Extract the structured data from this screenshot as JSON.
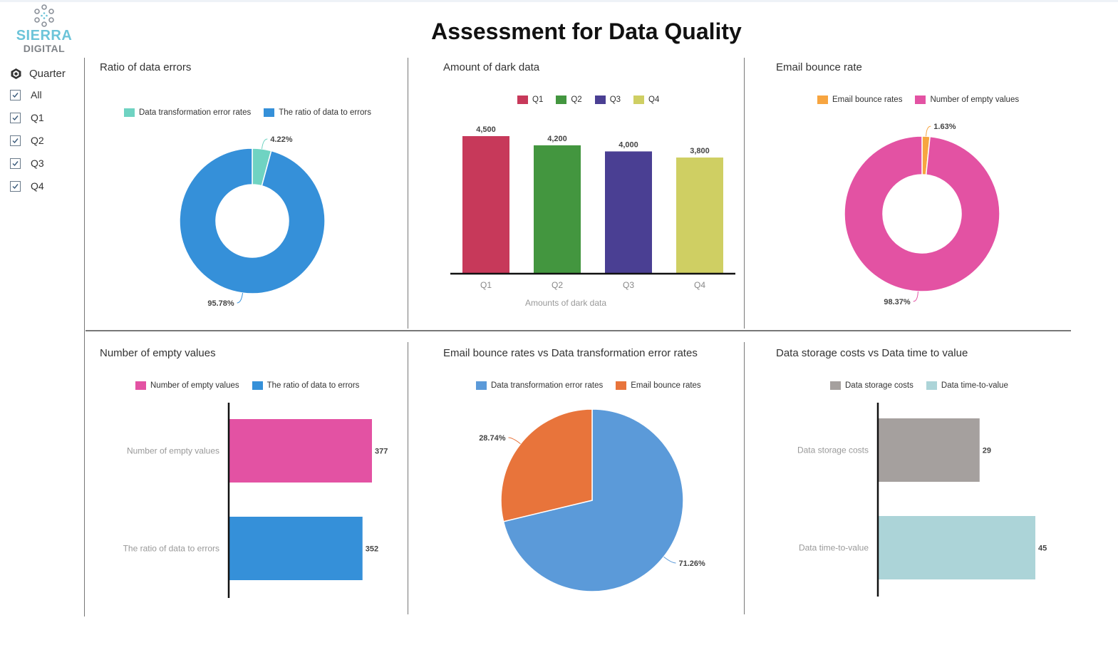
{
  "app": {
    "logo_line1": "SIERRA",
    "logo_line2": "DIGITAL",
    "title": "Assessment for Data Quality"
  },
  "filter": {
    "header": "Quarter",
    "header_icon": "cube-icon",
    "items": [
      {
        "label": "All",
        "checked": true
      },
      {
        "label": "Q1",
        "checked": true
      },
      {
        "label": "Q2",
        "checked": true
      },
      {
        "label": "Q3",
        "checked": true
      },
      {
        "label": "Q4",
        "checked": true
      }
    ]
  },
  "panels": {
    "p1": {
      "title": "Ratio of data errors"
    },
    "p2": {
      "title": "Amount of dark data"
    },
    "p3": {
      "title": "Email bounce rate"
    },
    "p4": {
      "title": "Number of empty values"
    },
    "p5": {
      "title": "Email bounce rates vs Data transformation error rates"
    },
    "p6": {
      "title": "Data storage costs vs Data time to value"
    }
  },
  "chart_data": [
    {
      "type": "pie",
      "donut": true,
      "title": "Ratio of data errors",
      "legend_position": "top",
      "categories": [
        "Data transformation error rates",
        "The ratio of data to errors"
      ],
      "values": [
        4.22,
        95.78
      ],
      "labels": [
        "4.22%",
        "95.78%"
      ],
      "colors": [
        "#6fd3c2",
        "#3590d9"
      ]
    },
    {
      "type": "bar",
      "title": "Amount of dark data",
      "legend_position": "top",
      "categories": [
        "Q1",
        "Q2",
        "Q3",
        "Q4"
      ],
      "values": [
        4500,
        4200,
        4000,
        3800
      ],
      "labels": [
        "4,500",
        "4,200",
        "4,000",
        "3,800"
      ],
      "xlabel": "Amounts of dark data",
      "ylim": [
        0,
        4500
      ],
      "colors": [
        "#c7395a",
        "#43963f",
        "#4a3f93",
        "#cfcf63"
      ]
    },
    {
      "type": "pie",
      "donut": true,
      "title": "Email bounce rate",
      "legend_position": "top",
      "categories": [
        "Email bounce rates",
        "Number of empty values"
      ],
      "values": [
        1.63,
        98.37
      ],
      "labels": [
        "1.63%",
        "98.37%"
      ],
      "colors": [
        "#f7a540",
        "#e352a3"
      ]
    },
    {
      "type": "bar",
      "orientation": "horizontal",
      "title": "Number of empty values",
      "legend_position": "top",
      "categories": [
        "Number of empty values",
        "The ratio of data to errors"
      ],
      "values": [
        377,
        352
      ],
      "labels": [
        "377",
        "352"
      ],
      "xlim": [
        0,
        377
      ],
      "colors": [
        "#e352a3",
        "#3590d9"
      ]
    },
    {
      "type": "pie",
      "title": "Email bounce rates vs Data transformation error rates",
      "legend_position": "top",
      "categories": [
        "Data transformation error rates",
        "Email bounce rates"
      ],
      "values": [
        71.26,
        28.74
      ],
      "labels": [
        "71.26%",
        "28.74%"
      ],
      "colors": [
        "#5b9ad9",
        "#e8743b"
      ]
    },
    {
      "type": "bar",
      "orientation": "horizontal",
      "title": "Data storage costs vs Data time to value",
      "legend_position": "top",
      "categories": [
        "Data storage costs",
        "Data time-to-value"
      ],
      "values": [
        29,
        45
      ],
      "labels": [
        "29",
        "45"
      ],
      "xlim": [
        0,
        45
      ],
      "colors": [
        "#a5a09e",
        "#acd4d8"
      ]
    }
  ]
}
